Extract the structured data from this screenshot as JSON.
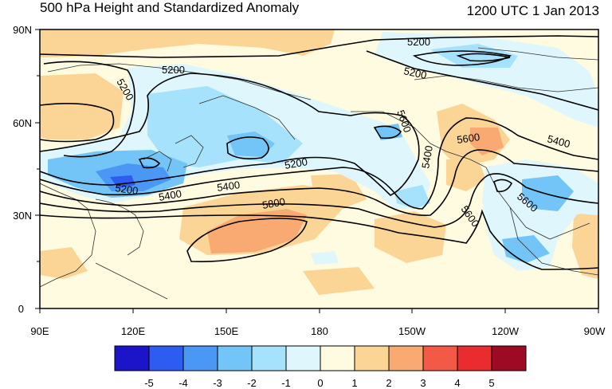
{
  "header": {
    "title": "500 hPa Height and Standardized Anomaly",
    "datetime": "1200 UTC 1 Jan 2013"
  },
  "map": {
    "lat_labels": [
      "90N",
      "60N",
      "30N",
      "0"
    ],
    "lon_labels": [
      "90E",
      "120E",
      "150E",
      "180",
      "150W",
      "120W",
      "90W"
    ],
    "contour_labels": [
      "5200",
      "5200",
      "5200",
      "5200",
      "5200",
      "5200",
      "5400",
      "5400",
      "5400",
      "5400",
      "5600",
      "5600",
      "5600",
      "5600",
      "5800"
    ]
  },
  "colorbar": {
    "tick_labels": [
      "-5",
      "-4",
      "-3",
      "-2",
      "-1",
      "0",
      "1",
      "2",
      "3",
      "4",
      "5"
    ],
    "colors": [
      "#1c14c8",
      "#2e5cf0",
      "#4b97f5",
      "#73c5f7",
      "#a6e2fb",
      "#def6fc",
      "#fffbe0",
      "#fbd596",
      "#f8aa72",
      "#f25a47",
      "#ea2b2f",
      "#9c0a24"
    ]
  }
}
